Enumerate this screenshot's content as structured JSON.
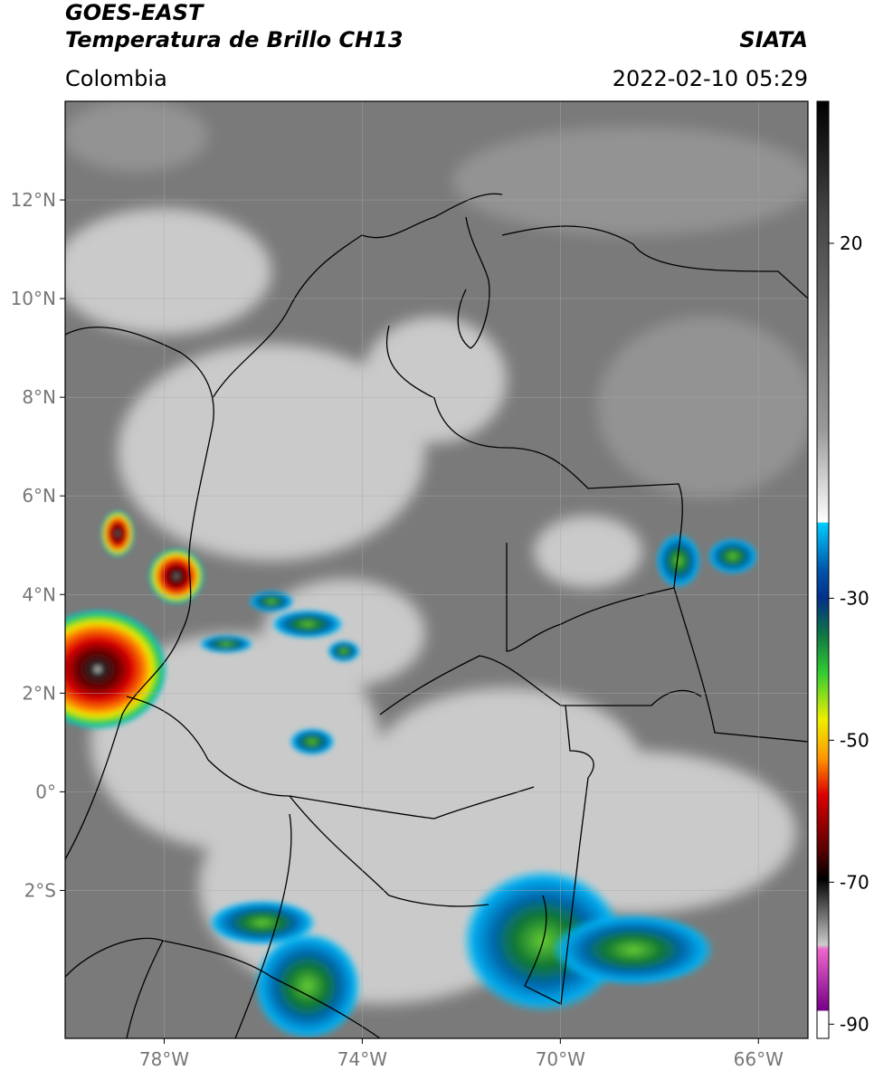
{
  "header": {
    "line1": "GOES-EAST",
    "line2": "Temperatura de Brillo CH13",
    "region": "Colombia",
    "source": "SIATA",
    "datetime": "2022-02-10 05:29"
  },
  "map": {
    "xlim": [
      -80,
      -65
    ],
    "ylim": [
      -5,
      14
    ],
    "grid": true,
    "xticks": [
      {
        "value": -78,
        "label": "78°W"
      },
      {
        "value": -74,
        "label": "74°W"
      },
      {
        "value": -70,
        "label": "70°W"
      },
      {
        "value": -66,
        "label": "66°W"
      }
    ],
    "yticks": [
      {
        "value": 12,
        "label": "12°N"
      },
      {
        "value": 10,
        "label": "10°N"
      },
      {
        "value": 8,
        "label": "8°N"
      },
      {
        "value": 6,
        "label": "6°N"
      },
      {
        "value": 4,
        "label": "4°N"
      },
      {
        "value": 2,
        "label": "2°N"
      },
      {
        "value": 0,
        "label": "0°"
      },
      {
        "value": -2,
        "label": "2°S"
      }
    ]
  },
  "colorbar": {
    "lim": [
      -92,
      40
    ],
    "ticks": [
      20,
      -30,
      -50,
      -70,
      -90
    ]
  }
}
